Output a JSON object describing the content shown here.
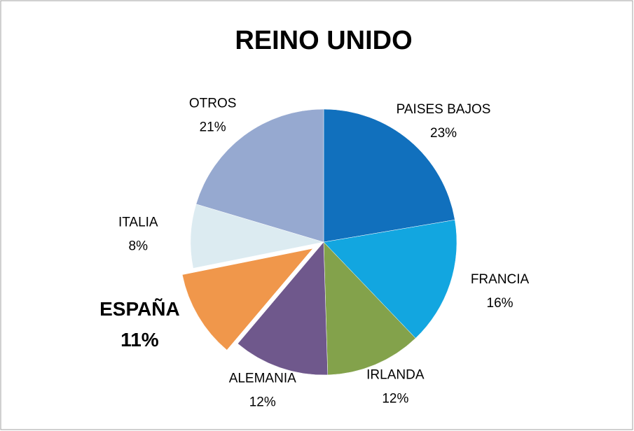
{
  "chart_data": {
    "type": "pie",
    "title": "REINO UNIDO",
    "categories": [
      "PAISES BAJOS",
      "FRANCIA",
      "IRLANDA",
      "ALEMANIA",
      "ESPAÑA",
      "ITALIA",
      "OTROS"
    ],
    "values": [
      23,
      16,
      12,
      12,
      11,
      8,
      21
    ],
    "value_labels": [
      "23%",
      "16%",
      "12%",
      "12%",
      "11%",
      "8%",
      "21%"
    ],
    "colors": [
      "#1170bd",
      "#12a6e0",
      "#83a24b",
      "#6f588c",
      "#f0974b",
      "#dcebf1",
      "#96a9d0"
    ],
    "explode": 4
  }
}
